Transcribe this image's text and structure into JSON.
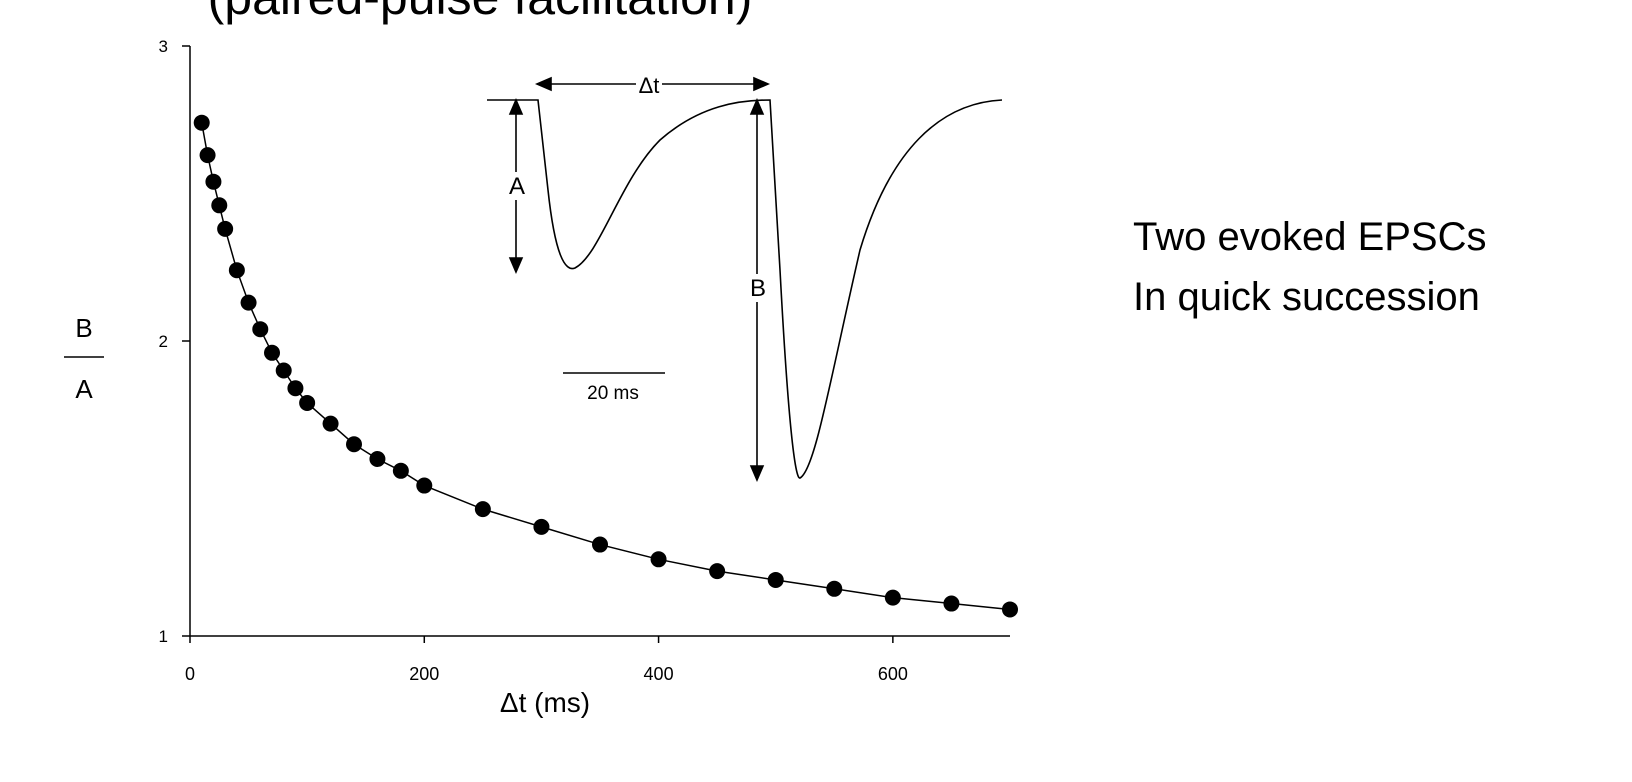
{
  "chart_data": {
    "type": "scatter",
    "title": "(paired-pulse facilitation)",
    "xlabel": "Δt  (ms)",
    "ylabel_numerator": "B",
    "ylabel_denominator": "A",
    "xlim": [
      0,
      700
    ],
    "ylim": [
      1,
      3
    ],
    "xticks": [
      0,
      200,
      400,
      600
    ],
    "yticks": [
      1,
      2,
      3
    ],
    "color": "#000000",
    "fit_line": true,
    "x": [
      10,
      15,
      20,
      25,
      30,
      40,
      50,
      60,
      70,
      80,
      90,
      100,
      120,
      140,
      160,
      180,
      200,
      250,
      300,
      350,
      400,
      450,
      500,
      550,
      600,
      650,
      700
    ],
    "values": [
      2.74,
      2.63,
      2.54,
      2.46,
      2.38,
      2.24,
      2.13,
      2.04,
      1.96,
      1.9,
      1.84,
      1.79,
      1.72,
      1.65,
      1.6,
      1.56,
      1.51,
      1.43,
      1.37,
      1.31,
      1.26,
      1.22,
      1.19,
      1.16,
      1.13,
      1.11,
      1.09
    ]
  },
  "inset": {
    "interval_label": "Δt",
    "first_label": "A",
    "second_label": "B",
    "scale_label": "20 ms"
  },
  "caption": {
    "lines": [
      "Two evoked EPSCs",
      "In quick succession"
    ]
  }
}
